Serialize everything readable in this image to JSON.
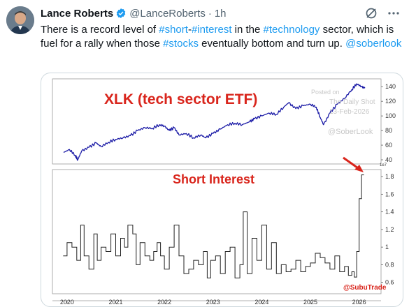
{
  "header": {
    "display_name": "Lance Roberts",
    "handle": "@LanceRoberts",
    "separator": "·",
    "time": "1h"
  },
  "tweet": {
    "segments": [
      {
        "text": "There is a record level of ",
        "tag": false
      },
      {
        "text": "#short",
        "tag": true
      },
      {
        "text": "-",
        "tag": false
      },
      {
        "text": "#interest",
        "tag": true
      },
      {
        "text": " in the ",
        "tag": false
      },
      {
        "text": "#technology",
        "tag": true
      },
      {
        "text": " sector, which is fuel for a rally when those ",
        "tag": false
      },
      {
        "text": "#stocks",
        "tag": true
      },
      {
        "text": " eventually bottom and turn up. ",
        "tag": false
      },
      {
        "text": "@soberlook",
        "tag": true
      }
    ]
  },
  "colors": {
    "link": "#1d9bf0",
    "xlk_line": "#1a1aa6",
    "short_line": "#222222",
    "chart_title": "#d9251c"
  },
  "icons": [
    "verified-badge-icon",
    "grok-icon",
    "more-icon"
  ],
  "chart_data": [
    {
      "type": "line",
      "title": "XLK (tech sector ETF)",
      "x": [
        2019.93,
        2020.05,
        2020.17,
        2020.22,
        2020.3,
        2020.45,
        2020.6,
        2020.7,
        2020.85,
        2021.0,
        2021.15,
        2021.3,
        2021.45,
        2021.6,
        2021.75,
        2021.9,
        2022.0,
        2022.1,
        2022.2,
        2022.3,
        2022.45,
        2022.6,
        2022.75,
        2022.85,
        2023.0,
        2023.15,
        2023.3,
        2023.45,
        2023.6,
        2023.75,
        2023.85,
        2024.0,
        2024.15,
        2024.3,
        2024.45,
        2024.55,
        2024.7,
        2024.85,
        2025.0,
        2025.12,
        2025.2,
        2025.27,
        2025.4,
        2025.55,
        2025.7,
        2025.85,
        2025.95,
        2026.05,
        2026.12
      ],
      "y": [
        50,
        54,
        46,
        40,
        52,
        57,
        63,
        58,
        64,
        68,
        70,
        73,
        80,
        84,
        83,
        88,
        86,
        80,
        84,
        74,
        76,
        70,
        74,
        70,
        76,
        82,
        88,
        90,
        88,
        92,
        96,
        100,
        104,
        102,
        112,
        118,
        110,
        114,
        116,
        112,
        98,
        88,
        104,
        116,
        124,
        136,
        144,
        140,
        138
      ],
      "ylim": [
        40,
        145
      ],
      "yticks": [
        40,
        60,
        80,
        100,
        120,
        140
      ],
      "xlim": [
        2019.7,
        2026.45
      ]
    },
    {
      "type": "line",
      "title": "Short Interest",
      "y_multiplier_label": "1e7",
      "x": [
        2019.92,
        2020.0,
        2020.1,
        2020.2,
        2020.28,
        2020.35,
        2020.45,
        2020.55,
        2020.62,
        2020.7,
        2020.8,
        2020.9,
        2021.0,
        2021.1,
        2021.18,
        2021.25,
        2021.35,
        2021.42,
        2021.5,
        2021.6,
        2021.7,
        2021.78,
        2021.85,
        2021.92,
        2022.0,
        2022.1,
        2022.2,
        2022.3,
        2022.4,
        2022.5,
        2022.6,
        2022.7,
        2022.8,
        2022.88,
        2022.95,
        2023.05,
        2023.15,
        2023.25,
        2023.35,
        2023.45,
        2023.55,
        2023.62,
        2023.7,
        2023.8,
        2023.9,
        2024.0,
        2024.1,
        2024.2,
        2024.3,
        2024.4,
        2024.5,
        2024.6,
        2024.7,
        2024.8,
        2024.9,
        2025.0,
        2025.1,
        2025.2,
        2025.3,
        2025.4,
        2025.5,
        2025.6,
        2025.7,
        2025.78,
        2025.85,
        2025.9,
        2025.95,
        2026.0,
        2026.05,
        2026.1
      ],
      "y": [
        0.9,
        1.05,
        1.0,
        0.85,
        1.25,
        0.9,
        0.75,
        1.15,
        0.85,
        1.0,
        0.95,
        1.15,
        0.9,
        1.1,
        1.0,
        1.25,
        1.15,
        0.8,
        1.05,
        0.9,
        0.85,
        0.95,
        1.05,
        0.9,
        0.75,
        1.0,
        1.25,
        0.9,
        0.7,
        0.75,
        0.85,
        0.8,
        0.95,
        0.65,
        0.85,
        0.9,
        0.7,
        0.95,
        1.0,
        0.65,
        0.8,
        1.4,
        0.7,
        1.1,
        0.85,
        1.25,
        0.75,
        1.05,
        0.7,
        0.8,
        0.72,
        0.75,
        0.85,
        0.72,
        0.78,
        0.82,
        0.93,
        0.88,
        0.82,
        0.75,
        0.9,
        0.72,
        0.78,
        0.68,
        0.72,
        0.66,
        0.95,
        1.55,
        1.82,
        1.82
      ],
      "ylim": [
        0.55,
        1.88
      ],
      "yticks": [
        0.6,
        0.8,
        1.0,
        1.2,
        1.4,
        1.6,
        1.8
      ],
      "xlim": [
        2019.7,
        2026.45
      ]
    }
  ],
  "chart_text": {
    "xticks": [
      "2020",
      "2021",
      "2022",
      "2023",
      "2024",
      "2025",
      "2026"
    ],
    "watermark_1": "Posted on",
    "watermark_2": "The Daily Shot",
    "watermark_3": "13-Feb-2026",
    "watermark_4": "@SoberLook",
    "credit": "@SubuTrade"
  }
}
